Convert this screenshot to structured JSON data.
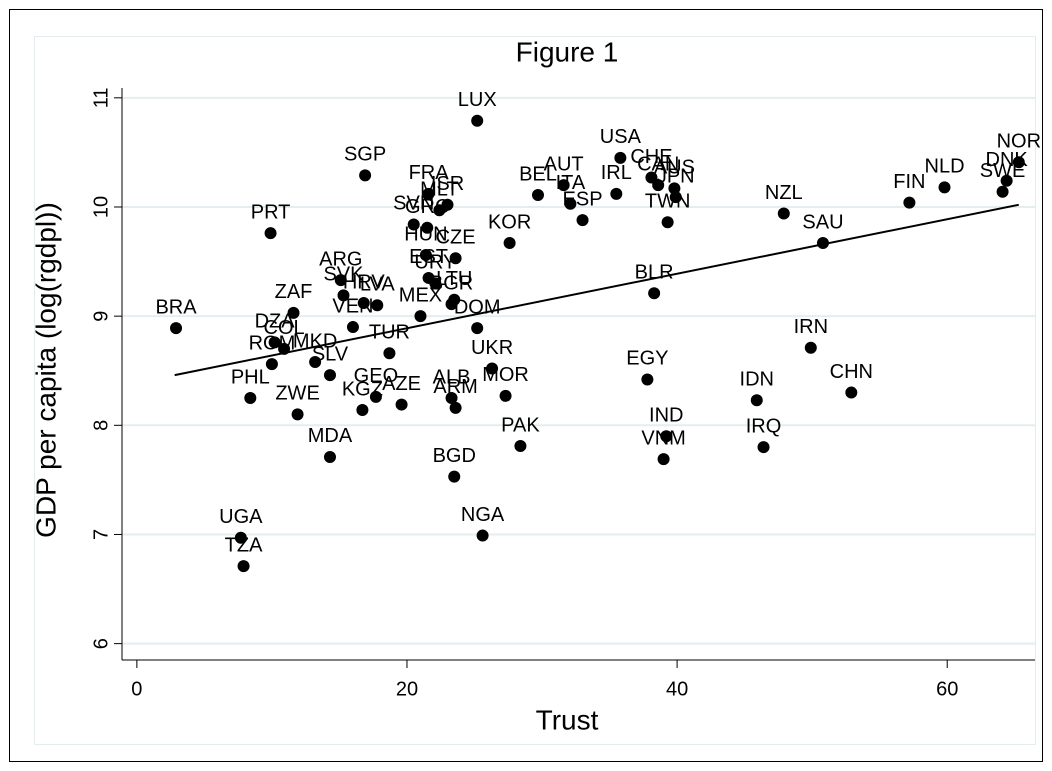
{
  "chart_data": {
    "type": "scatter",
    "title": "Figure 1",
    "x_label": "Trust",
    "y_label": "GDP per capita (log(rgdpl))",
    "xlim": [
      -1.1,
      66.5
    ],
    "ylim": [
      5.85,
      11.09
    ],
    "xticks": [
      0,
      20,
      40,
      60
    ],
    "yticks": [
      6,
      7,
      8,
      9,
      10,
      11
    ],
    "grid": true,
    "color": "#000000",
    "labels": [
      "LUX",
      "SGP",
      "PRT",
      "BRA",
      "USA",
      "NOR",
      "DNK",
      "SWE",
      "NLD",
      "FIN",
      "NZL",
      "SAU",
      "BLR",
      "IRN",
      "CHN",
      "IDN",
      "IRQ",
      "IND",
      "VNM",
      "EGY",
      "PAK",
      "BGD",
      "NGA",
      "UGA",
      "TZA",
      "MDA",
      "ZWE",
      "PHL",
      "KOR",
      "CZE",
      "BGR",
      "DOM",
      "UKR",
      "MOR",
      "ARM",
      "ALB",
      "AZE",
      "KGZ",
      "GEO",
      "TUR",
      "SLV",
      "MKD",
      "ROM",
      "COL",
      "DZA",
      "ZAF",
      "VEN",
      "MEX",
      "ARG",
      "SVK",
      "HRV",
      "LVA",
      "FRA",
      "ISR",
      "MLT",
      "SVN",
      "GRC",
      "HUN",
      "EST",
      "URY",
      "LTU",
      "BEL",
      "AUT",
      "ITA",
      "ESP",
      "IRL",
      "TWN",
      "CHE",
      "CAN",
      "AUS",
      "JPN"
    ],
    "x": [
      25.2,
      16.9,
      9.9,
      2.9,
      35.8,
      65.3,
      64.4,
      64.1,
      59.8,
      57.2,
      47.9,
      50.8,
      38.3,
      49.9,
      52.9,
      45.9,
      46.4,
      39.2,
      39.0,
      37.8,
      28.4,
      23.5,
      25.6,
      7.7,
      7.9,
      14.3,
      11.9,
      8.4,
      27.6,
      23.6,
      23.3,
      25.2,
      26.3,
      27.3,
      23.6,
      23.3,
      19.6,
      16.7,
      17.7,
      18.7,
      14.3,
      13.2,
      10.0,
      10.9,
      10.2,
      11.6,
      16.0,
      21.0,
      15.1,
      15.3,
      16.8,
      17.8,
      21.6,
      23.0,
      22.4,
      20.5,
      21.5,
      21.4,
      21.6,
      22.1,
      23.5,
      29.7,
      31.6,
      32.1,
      33.0,
      35.5,
      39.3,
      38.1,
      38.6,
      39.8,
      39.9
    ],
    "y": [
      10.79,
      10.29,
      9.76,
      8.89,
      10.45,
      10.41,
      10.24,
      10.14,
      10.18,
      10.04,
      9.94,
      9.67,
      9.21,
      8.71,
      8.3,
      8.23,
      7.8,
      7.9,
      7.69,
      8.42,
      7.81,
      7.53,
      6.99,
      6.97,
      6.71,
      7.71,
      8.1,
      8.25,
      9.67,
      9.53,
      9.11,
      8.89,
      8.52,
      8.27,
      8.16,
      8.25,
      8.19,
      8.14,
      8.26,
      8.66,
      8.46,
      8.58,
      8.56,
      8.7,
      8.76,
      9.03,
      8.9,
      9.0,
      9.33,
      9.19,
      9.12,
      9.1,
      10.12,
      10.02,
      9.97,
      9.84,
      9.81,
      9.56,
      9.35,
      9.3,
      9.15,
      10.11,
      10.2,
      10.03,
      9.88,
      10.12,
      9.86,
      10.27,
      10.2,
      10.17,
      10.09
    ],
    "fit_line": {
      "x": [
        2.8,
        65.3
      ],
      "y": [
        8.46,
        10.02
      ]
    }
  }
}
